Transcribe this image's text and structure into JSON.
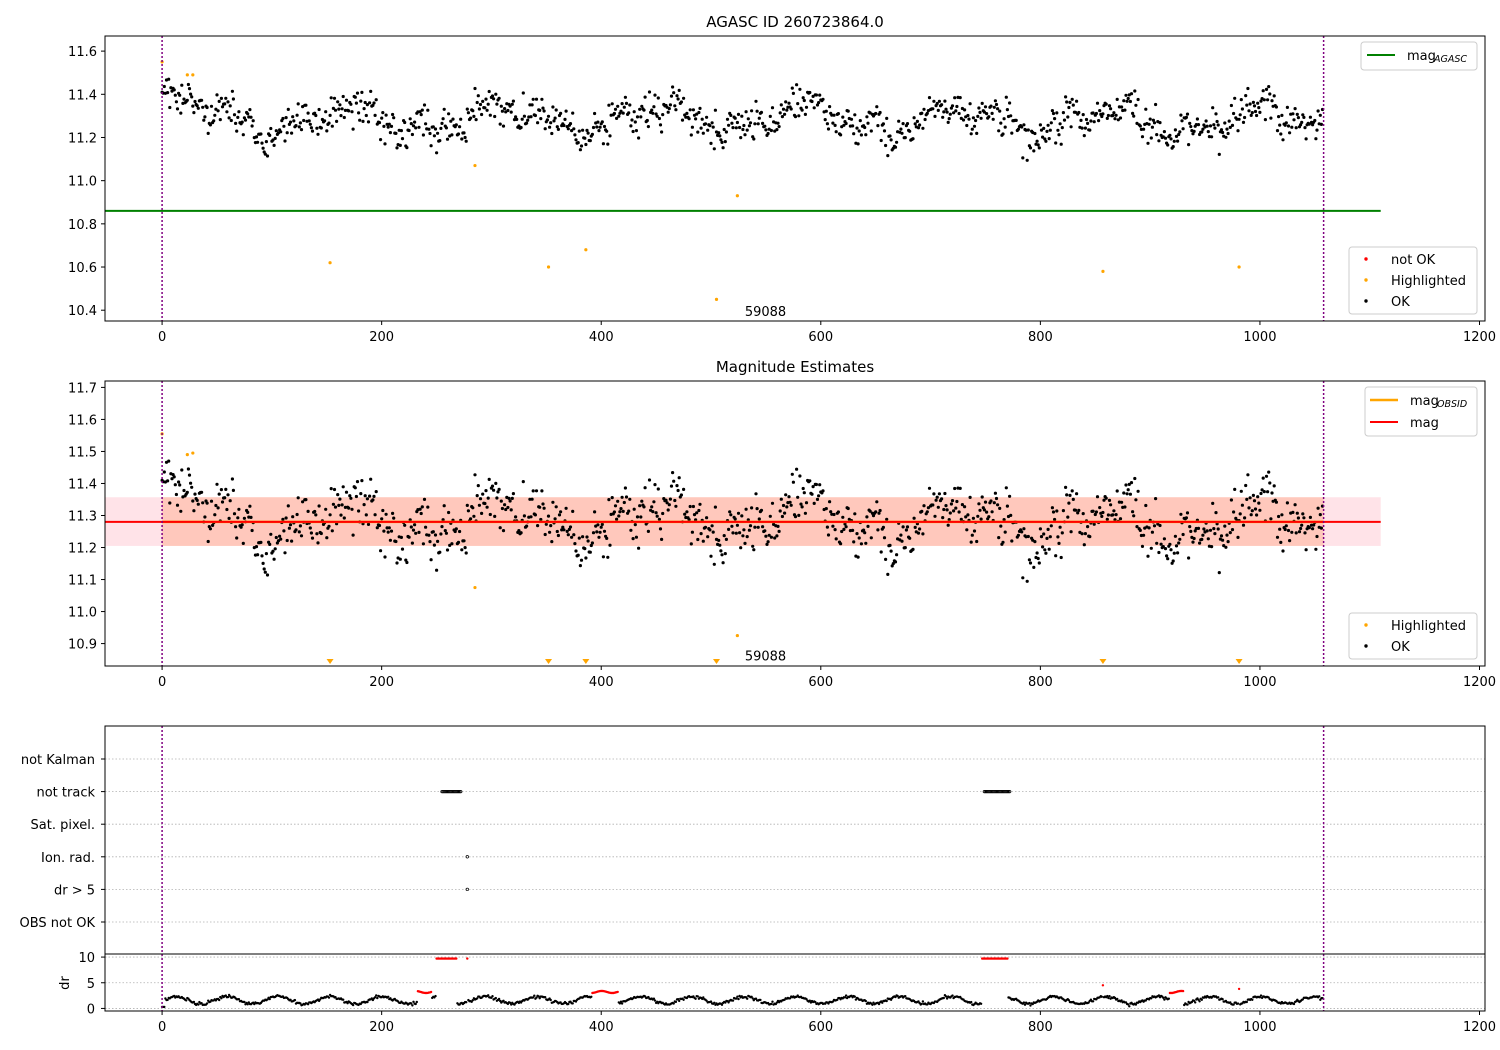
{
  "colors": {
    "ok": "#000000",
    "highlighted": "#ffa500",
    "not_ok": "#ff0000",
    "mag_agasc": "#008000",
    "mag_obsid": "#ffa500",
    "mag": "#ff0000",
    "band": "#ffc0cb",
    "band_overlap": "#ffa07a",
    "obs_boundary": "#800080"
  },
  "chart_data": [
    {
      "type": "scatter",
      "title": "AGASC ID 260723864.0",
      "xlim": [
        -52,
        1205
      ],
      "ylim": [
        10.35,
        11.67
      ],
      "xticks": [
        0,
        200,
        400,
        600,
        800,
        1000,
        1200
      ],
      "yticks": [
        10.4,
        10.6,
        10.8,
        11.0,
        11.2,
        11.4,
        11.6
      ],
      "ytick_labels": [
        "10.4",
        "10.6",
        "10.8",
        "11.0",
        "11.2",
        "11.4",
        "11.6"
      ],
      "mag_agasc": 10.86,
      "mag_agasc_xrange": [
        -52,
        1110
      ],
      "obs_boundaries": [
        0,
        1058
      ],
      "obs_label": {
        "text": "59088",
        "x": 529,
        "y": 10.4
      },
      "ok_series": {
        "n": 1058,
        "mean": 11.28,
        "sd": 0.07
      },
      "highlighted_points": [
        [
          0,
          11.55
        ],
        [
          23,
          11.49
        ],
        [
          28,
          11.49
        ],
        [
          285,
          11.07
        ],
        [
          153,
          10.62
        ],
        [
          352,
          10.6
        ],
        [
          386,
          10.68
        ],
        [
          524,
          10.93
        ],
        [
          505,
          10.45
        ],
        [
          857,
          10.58
        ],
        [
          981,
          10.6
        ]
      ],
      "legend_top": [
        {
          "label": "mag",
          "sub": "AGASC",
          "color_key": "mag_agasc"
        }
      ],
      "legend_bottom": [
        {
          "label": "not OK",
          "color_key": "not_ok"
        },
        {
          "label": "Highlighted",
          "color_key": "highlighted"
        },
        {
          "label": "OK",
          "color_key": "ok"
        }
      ]
    },
    {
      "type": "scatter",
      "title": "Magnitude Estimates",
      "xlim": [
        -52,
        1205
      ],
      "ylim": [
        10.83,
        11.72
      ],
      "xticks": [
        0,
        200,
        400,
        600,
        800,
        1000,
        1200
      ],
      "yticks": [
        10.9,
        11.0,
        11.1,
        11.2,
        11.3,
        11.4,
        11.5,
        11.6,
        11.7
      ],
      "ytick_labels": [
        "10.9",
        "11.0",
        "11.1",
        "11.2",
        "11.3",
        "11.4",
        "11.5",
        "11.6",
        "11.7"
      ],
      "mag": 11.28,
      "mag_band": [
        11.205,
        11.357
      ],
      "mag_obsid": 11.28,
      "mag_obsid_band": [
        11.205,
        11.357
      ],
      "obs_boundaries": [
        0,
        1058
      ],
      "obs_label": {
        "text": "59088",
        "x": 529,
        "y": 10.86
      },
      "highlighted_points": [
        [
          0,
          11.555
        ],
        [
          23,
          11.49
        ],
        [
          28,
          11.495
        ],
        [
          285,
          11.075
        ],
        [
          524,
          10.925
        ]
      ],
      "offscale_markers": [
        153,
        352,
        386,
        505,
        857,
        981
      ],
      "legend_top": [
        {
          "label": "mag",
          "sub": "OBSID",
          "color_key": "mag_obsid"
        },
        {
          "label": "mag",
          "sub": "",
          "color_key": "mag"
        }
      ],
      "legend_bottom": [
        {
          "label": "Highlighted",
          "color_key": "highlighted"
        },
        {
          "label": "OK",
          "color_key": "ok"
        }
      ]
    },
    {
      "type": "scatter",
      "title": "",
      "xlim": [
        -52,
        1205
      ],
      "flag_rows": [
        "not Kalman",
        "not track",
        "Sat. pixel.",
        "Ion. rad.",
        "dr > 5",
        "OBS not OK"
      ],
      "flag_points": {
        "not track": [
          [
            255,
            272
          ],
          [
            749,
            772
          ]
        ],
        "Ion. rad.": [
          [
            278,
            278
          ]
        ],
        "dr > 5": [
          [
            278,
            278
          ]
        ]
      },
      "dr_ylabel": "dr",
      "dr_yticks": [
        0,
        5,
        10
      ],
      "dr_ytick_labels": [
        "0",
        "5",
        "10"
      ],
      "dr_ylim": [
        -0.5,
        10.6
      ],
      "dr_saturated": [
        [
          250,
          268
        ],
        [
          278,
          278
        ],
        [
          747,
          770
        ]
      ],
      "dr_red_ranges": [
        [
          233,
          245
        ],
        [
          392,
          415
        ],
        [
          767,
          770
        ],
        [
          857,
          857
        ],
        [
          918,
          930
        ],
        [
          981,
          981
        ]
      ],
      "xticks": [
        0,
        200,
        400,
        600,
        800,
        1000,
        1200
      ],
      "obs_boundaries": [
        0,
        1058
      ]
    }
  ]
}
